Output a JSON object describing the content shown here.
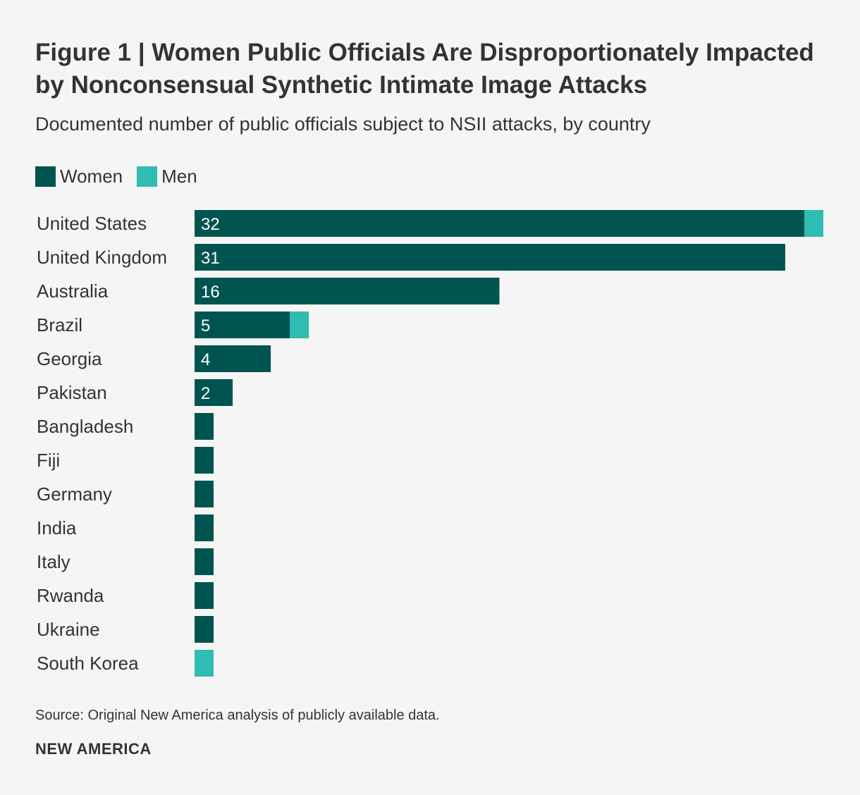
{
  "header": {
    "title": "Figure 1 | Women Public Officials Are Disproportionately Impacted by Nonconsensual Synthetic Intimate Image Attacks",
    "subtitle": "Documented number of public officials subject to NSII attacks, by country"
  },
  "legend": {
    "women_label": "Women",
    "men_label": "Men"
  },
  "colors": {
    "women": "#005450",
    "men": "#2ebcb3",
    "background": "#f5f5f5",
    "text": "#333333"
  },
  "chart_data": {
    "type": "bar",
    "orientation": "horizontal",
    "stacked": true,
    "title": "Figure 1 | Women Public Officials Are Disproportionately Impacted by Nonconsensual Synthetic Intimate Image Attacks",
    "subtitle": "Documented number of public officials subject to NSII attacks, by country",
    "categories": [
      "United States",
      "United Kingdom",
      "Australia",
      "Brazil",
      "Georgia",
      "Pakistan",
      "Bangladesh",
      "Fiji",
      "Germany",
      "India",
      "Italy",
      "Rwanda",
      "Ukraine",
      "South Korea"
    ],
    "series": [
      {
        "name": "Women",
        "values": [
          32,
          31,
          16,
          5,
          4,
          2,
          1,
          1,
          1,
          1,
          1,
          1,
          1,
          0
        ]
      },
      {
        "name": "Men",
        "values": [
          1,
          0,
          0,
          1,
          0,
          0,
          0,
          0,
          0,
          0,
          0,
          0,
          0,
          1
        ]
      }
    ],
    "data_labels": [
      "32",
      "31",
      "16",
      "5",
      "4",
      "2",
      "",
      "",
      "",
      "",
      "",
      "",
      "",
      ""
    ],
    "xlim": [
      0,
      33
    ],
    "legend_position": "top-left",
    "grid": false
  },
  "footer": {
    "source": "Source: Original New America analysis of publicly available data.",
    "brand": "NEW AMERICA"
  }
}
